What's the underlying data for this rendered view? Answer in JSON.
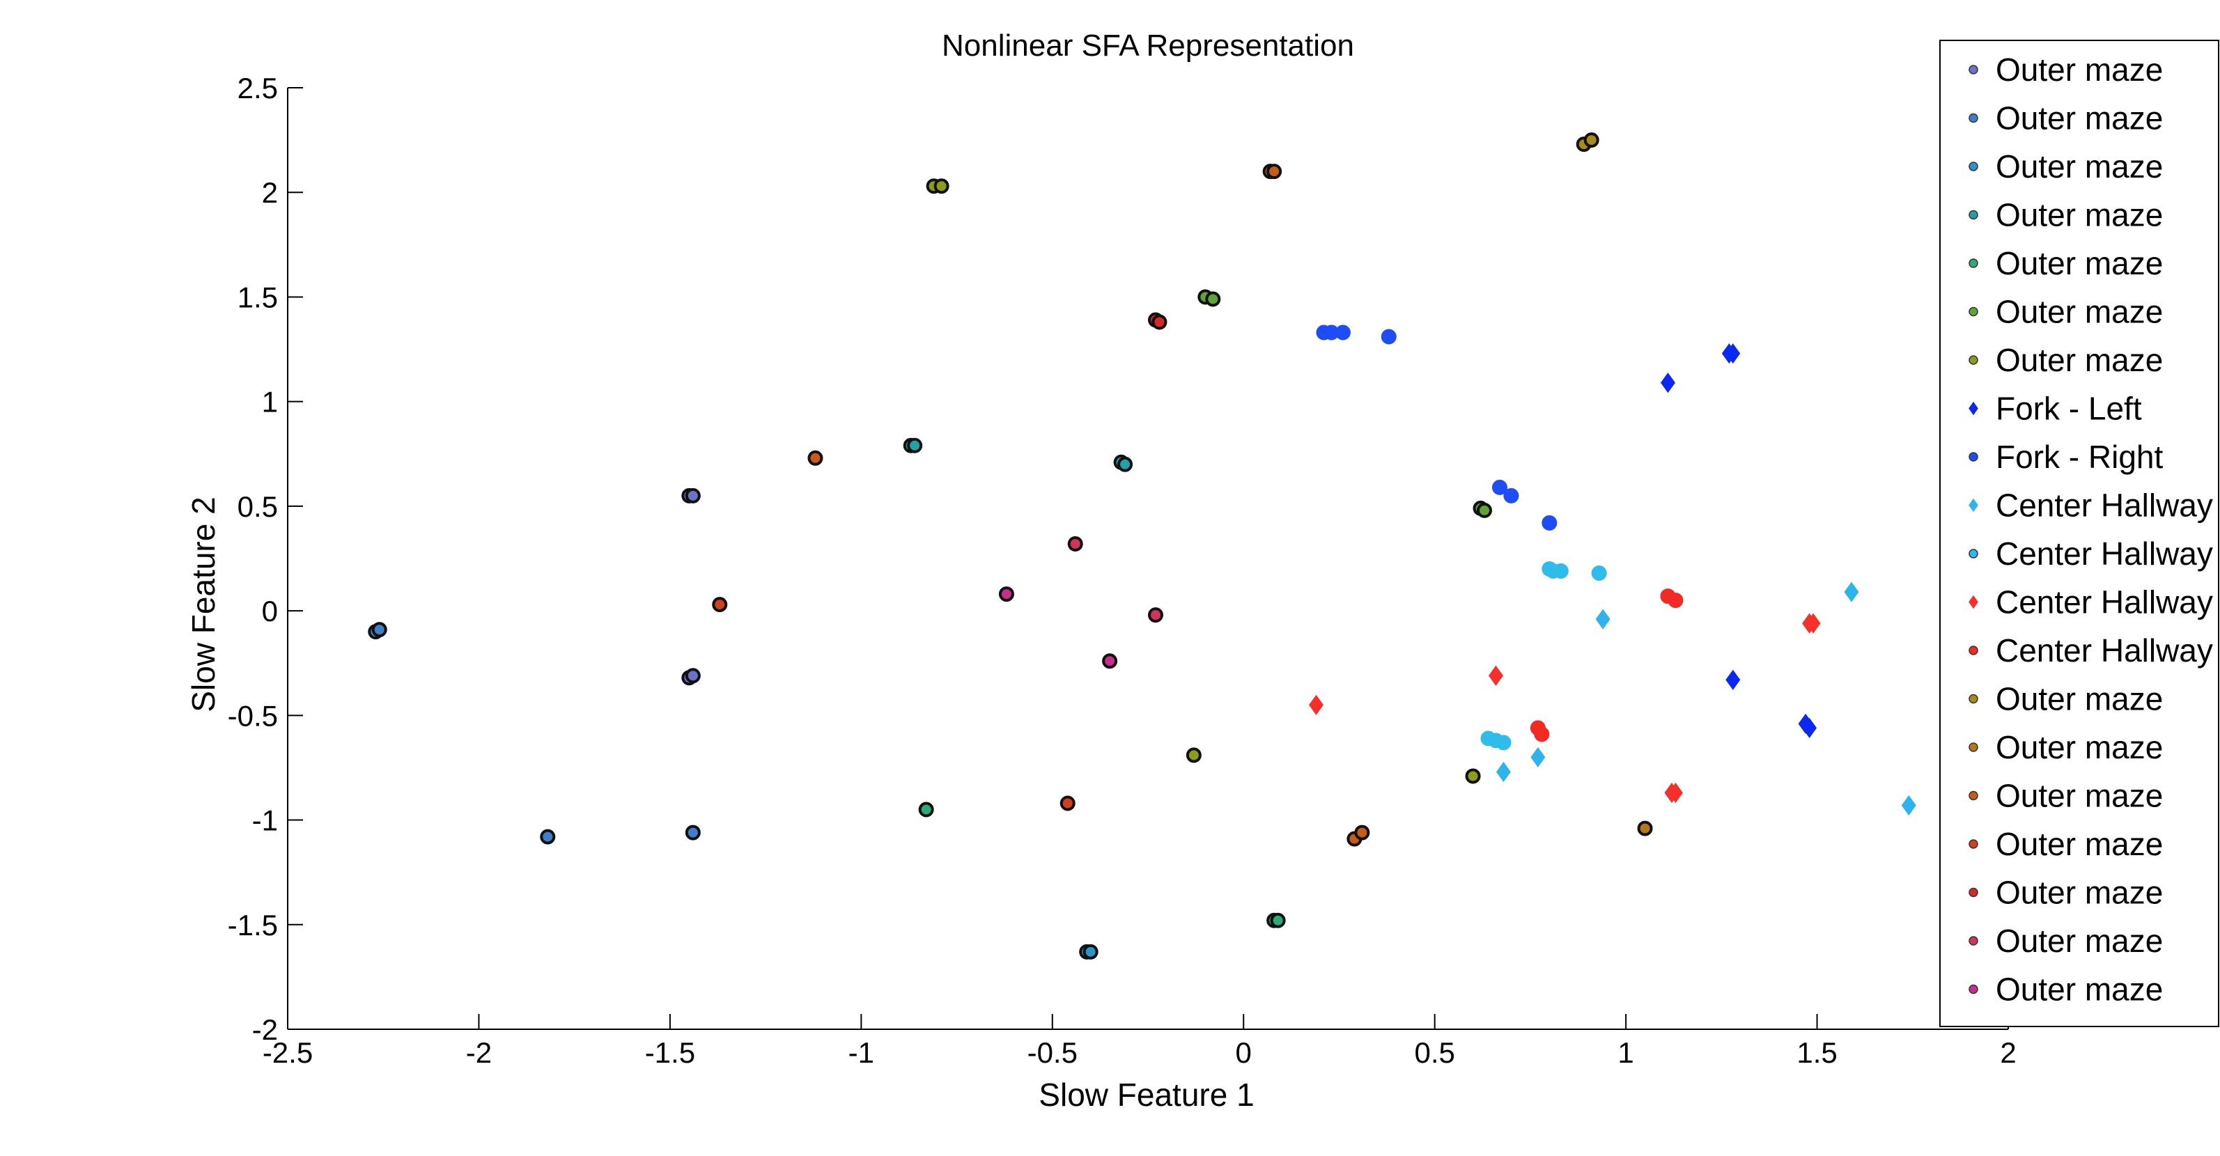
{
  "chart_data": {
    "type": "scatter",
    "title": "Nonlinear SFA Representation",
    "xlabel": "Slow Feature 1",
    "ylabel": "Slow Feature 2",
    "xlim": [
      -2.5,
      2
    ],
    "ylim": [
      -2,
      2.5
    ],
    "xticks": [
      "-2.5",
      "-2",
      "-1.5",
      "-1",
      "-0.5",
      "0",
      "0.5",
      "1",
      "1.5",
      "2"
    ],
    "yticks": [
      "2.5",
      "2",
      "1.5",
      "1",
      "0.5",
      "0",
      "-0.5",
      "-1",
      "-1.5",
      "-2"
    ],
    "xtick_values": [
      -2.5,
      -2,
      -1.5,
      -1,
      -0.5,
      0,
      0.5,
      1,
      1.5,
      2
    ],
    "ytick_values": [
      2.5,
      2,
      1.5,
      1,
      0.5,
      0,
      -0.5,
      -1,
      -1.5,
      -2
    ],
    "grid": false,
    "legend_position": "top-right",
    "series": [
      {
        "name": "Outer maze",
        "marker": "circle",
        "color": "#6b72c9",
        "points": [
          [
            -1.45,
            0.55
          ],
          [
            -1.44,
            0.55
          ],
          [
            -1.45,
            -0.32
          ],
          [
            -1.44,
            -0.31
          ]
        ]
      },
      {
        "name": "Outer maze",
        "marker": "circle",
        "color": "#3f7fc8",
        "points": [
          [
            -2.27,
            -0.1
          ],
          [
            -2.26,
            -0.09
          ],
          [
            -1.82,
            -1.08
          ],
          [
            -1.44,
            -1.06
          ]
        ]
      },
      {
        "name": "Outer maze",
        "marker": "circle",
        "color": "#2b94c9",
        "points": [
          [
            -0.41,
            -1.63
          ],
          [
            -0.4,
            -1.63
          ]
        ]
      },
      {
        "name": "Outer maze",
        "marker": "circle",
        "color": "#24a1a8",
        "points": [
          [
            -0.87,
            0.79
          ],
          [
            -0.86,
            0.79
          ],
          [
            -0.32,
            0.71
          ],
          [
            -0.31,
            0.7
          ]
        ]
      },
      {
        "name": "Outer maze",
        "marker": "circle",
        "color": "#2eaa78",
        "points": [
          [
            -0.83,
            -0.95
          ],
          [
            0.08,
            -1.48
          ],
          [
            0.09,
            -1.48
          ]
        ]
      },
      {
        "name": "Outer maze",
        "marker": "circle",
        "color": "#5fa535",
        "points": [
          [
            -0.1,
            1.5
          ],
          [
            -0.08,
            1.49
          ],
          [
            0.62,
            0.49
          ],
          [
            0.63,
            0.48
          ]
        ]
      },
      {
        "name": "Outer maze",
        "marker": "circle",
        "color": "#8e9b1b",
        "points": [
          [
            -0.81,
            2.03
          ],
          [
            -0.79,
            2.03
          ],
          [
            -0.13,
            -0.69
          ],
          [
            0.6,
            -0.79
          ]
        ]
      },
      {
        "name": "Fork - Left",
        "marker": "diamond",
        "color": "#0a28f0",
        "points": [
          [
            1.11,
            1.09
          ],
          [
            1.27,
            1.23
          ],
          [
            1.28,
            1.23
          ],
          [
            1.28,
            -0.33
          ],
          [
            1.47,
            -0.54
          ],
          [
            1.48,
            -0.56
          ]
        ]
      },
      {
        "name": "Fork - Right",
        "marker": "circle",
        "color": "#1f4df5",
        "points": [
          [
            0.21,
            1.33
          ],
          [
            0.23,
            1.33
          ],
          [
            0.26,
            1.33
          ],
          [
            0.38,
            1.31
          ],
          [
            0.67,
            0.59
          ],
          [
            0.7,
            0.55
          ],
          [
            0.8,
            0.42
          ]
        ]
      },
      {
        "name": "Center Hallway",
        "marker": "diamond",
        "color": "#2fb3ec",
        "points": [
          [
            0.94,
            -0.04
          ],
          [
            0.68,
            -0.77
          ],
          [
            0.77,
            -0.7
          ],
          [
            1.59,
            0.09
          ],
          [
            1.74,
            -0.93
          ]
        ]
      },
      {
        "name": "Center Hallway",
        "marker": "circle",
        "color": "#30bcea",
        "points": [
          [
            0.8,
            0.2
          ],
          [
            0.81,
            0.19
          ],
          [
            0.83,
            0.19
          ],
          [
            0.93,
            0.18
          ],
          [
            0.64,
            -0.61
          ],
          [
            0.66,
            -0.62
          ],
          [
            0.68,
            -0.63
          ]
        ]
      },
      {
        "name": "Center Hallway",
        "marker": "diamond",
        "color": "#f5302a",
        "points": [
          [
            0.19,
            -0.45
          ],
          [
            0.66,
            -0.31
          ],
          [
            1.12,
            -0.87
          ],
          [
            1.13,
            -0.87
          ],
          [
            1.48,
            -0.06
          ],
          [
            1.49,
            -0.06
          ]
        ]
      },
      {
        "name": "Center Hallway",
        "marker": "circle",
        "color": "#f22a24",
        "points": [
          [
            1.11,
            0.07
          ],
          [
            1.13,
            0.05
          ],
          [
            0.77,
            -0.56
          ],
          [
            0.78,
            -0.59
          ]
        ]
      },
      {
        "name": "Outer maze",
        "marker": "circle",
        "color": "#a88a1a",
        "points": [
          [
            0.89,
            2.23
          ],
          [
            0.91,
            2.25
          ]
        ]
      },
      {
        "name": "Outer maze",
        "marker": "circle",
        "color": "#b67718",
        "points": [
          [
            1.05,
            -1.04
          ]
        ]
      },
      {
        "name": "Outer maze",
        "marker": "circle",
        "color": "#c65c1a",
        "points": [
          [
            -1.12,
            0.73
          ],
          [
            0.07,
            2.1
          ],
          [
            0.08,
            2.1
          ],
          [
            0.29,
            -1.09
          ],
          [
            0.31,
            -1.06
          ]
        ]
      },
      {
        "name": "Outer maze",
        "marker": "circle",
        "color": "#cf4020",
        "points": [
          [
            -1.37,
            0.03
          ],
          [
            -0.46,
            -0.92
          ]
        ]
      },
      {
        "name": "Outer maze",
        "marker": "circle",
        "color": "#d32a27",
        "points": [
          [
            -0.23,
            1.39
          ],
          [
            -0.22,
            1.38
          ]
        ]
      },
      {
        "name": "Outer maze",
        "marker": "circle",
        "color": "#d0345a",
        "points": [
          [
            -0.44,
            0.32
          ],
          [
            -0.23,
            -0.02
          ]
        ]
      },
      {
        "name": "Outer maze",
        "marker": "circle",
        "color": "#c72e8e",
        "points": [
          [
            -0.62,
            0.08
          ],
          [
            -0.35,
            -0.24
          ]
        ]
      }
    ]
  }
}
